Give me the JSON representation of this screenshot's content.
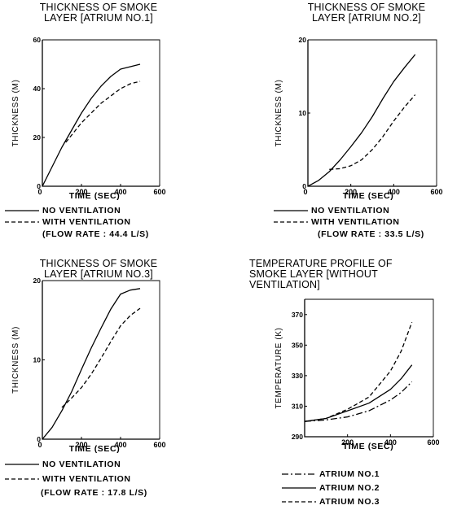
{
  "chart_data": [
    {
      "type": "line",
      "title": "THICKNESS OF SMOKE LAYER [ATRIUM NO.1]",
      "xlabel": "TIME (SEC)",
      "ylabel": "THICKNESS (M)",
      "xlim": [
        0,
        600
      ],
      "ylim": [
        0,
        60
      ],
      "xticks": [
        0,
        200,
        400,
        600
      ],
      "yticks": [
        0,
        20,
        40,
        60
      ],
      "xtick_labels": [
        "0",
        "200",
        "400",
        "600"
      ],
      "ytick_labels": [
        "0",
        "20",
        "40",
        "60"
      ],
      "series": [
        {
          "name": "NO VENTILATION",
          "style": "solid",
          "x": [
            0,
            50,
            100,
            150,
            200,
            250,
            300,
            350,
            400,
            450,
            500
          ],
          "y": [
            0,
            8,
            16,
            23,
            30,
            36,
            41,
            45,
            48,
            49,
            50
          ]
        },
        {
          "name": "WITH VENTILATION",
          "style": "dashed",
          "x": [
            120,
            150,
            200,
            250,
            300,
            350,
            400,
            450,
            500
          ],
          "y": [
            18,
            21,
            26,
            30,
            34,
            37,
            40,
            42,
            43
          ]
        }
      ],
      "flow_note": "(FLOW RATE : 44.4 L/S)"
    },
    {
      "type": "line",
      "title": "THICKNESS OF SMOKE LAYER [ATRIUM NO.2]",
      "xlabel": "TIME (SEC)",
      "ylabel": "THICKNESS (M)",
      "xlim": [
        0,
        600
      ],
      "ylim": [
        0,
        20
      ],
      "xticks": [
        0,
        200,
        400,
        600
      ],
      "yticks": [
        0,
        10,
        20
      ],
      "xtick_labels": [
        "0",
        "200",
        "400",
        "600"
      ],
      "ytick_labels": [
        "0",
        "10",
        "20"
      ],
      "series": [
        {
          "name": "NO VENTILATION",
          "style": "solid",
          "x": [
            0,
            50,
            100,
            150,
            200,
            250,
            300,
            350,
            400,
            450,
            500
          ],
          "y": [
            0,
            0.8,
            2,
            3.6,
            5.4,
            7.3,
            9.5,
            12,
            14.3,
            16.2,
            18
          ]
        },
        {
          "name": "WITH VENTILATION",
          "style": "dashed",
          "x": [
            100,
            150,
            200,
            250,
            300,
            350,
            400,
            450,
            500
          ],
          "y": [
            2.3,
            2.4,
            2.8,
            3.6,
            5,
            6.8,
            8.9,
            10.8,
            12.5
          ]
        }
      ],
      "flow_note": "(FLOW RATE : 33.5 L/S)"
    },
    {
      "type": "line",
      "title": "THICKNESS OF SMOKE LAYER [ATRIUM NO.3]",
      "xlabel": "TIME (SEC)",
      "ylabel": "THICKNESS (M)",
      "xlim": [
        0,
        600
      ],
      "ylim": [
        0,
        20
      ],
      "xticks": [
        0,
        200,
        400,
        600
      ],
      "yticks": [
        0,
        10,
        20
      ],
      "xtick_labels": [
        "0",
        "200",
        "400",
        "600"
      ],
      "ytick_labels": [
        "0",
        "10",
        "20"
      ],
      "series": [
        {
          "name": "NO VENTILATION",
          "style": "solid",
          "x": [
            0,
            50,
            100,
            150,
            200,
            250,
            300,
            350,
            400,
            450,
            500
          ],
          "y": [
            0,
            1.5,
            3.6,
            6,
            8.8,
            11.5,
            14,
            16.4,
            18.3,
            18.8,
            19
          ]
        },
        {
          "name": "WITH VENTILATION",
          "style": "dashed",
          "x": [
            100,
            150,
            200,
            250,
            300,
            350,
            400,
            450,
            500
          ],
          "y": [
            4,
            5.2,
            6.5,
            8.2,
            10.2,
            12.3,
            14.3,
            15.6,
            16.5
          ]
        }
      ],
      "flow_note": "(FLOW RATE : 17.8 L/S)"
    },
    {
      "type": "line",
      "title": "TEMPERATURE PROFILE OF SMOKE LAYER [WITHOUT VENTILATION]",
      "xlabel": "TIME (SEC)",
      "ylabel": "TEMPERATURE (K)",
      "xlim": [
        0,
        600
      ],
      "ylim": [
        290,
        380
      ],
      "xticks": [
        0,
        200,
        400,
        600
      ],
      "yticks": [
        290,
        310,
        330,
        350,
        370
      ],
      "xtick_labels": [
        "",
        "200",
        "400",
        "600"
      ],
      "ytick_labels": [
        "290",
        "310",
        "330",
        "350",
        "370"
      ],
      "series": [
        {
          "name": "ATRIUM NO.1",
          "style": "dashdot",
          "x": [
            0,
            100,
            200,
            300,
            400,
            450,
            500
          ],
          "y": [
            300,
            301,
            303,
            307,
            314,
            319,
            326
          ]
        },
        {
          "name": "ATRIUM NO.2",
          "style": "solid",
          "x": [
            0,
            100,
            200,
            300,
            400,
            450,
            500
          ],
          "y": [
            300,
            302,
            307,
            312,
            321,
            328,
            337
          ]
        },
        {
          "name": "ATRIUM NO.3",
          "style": "dashed",
          "x": [
            0,
            100,
            200,
            300,
            400,
            450,
            500
          ],
          "y": [
            300,
            302,
            308,
            316,
            333,
            346,
            365
          ]
        }
      ]
    }
  ]
}
